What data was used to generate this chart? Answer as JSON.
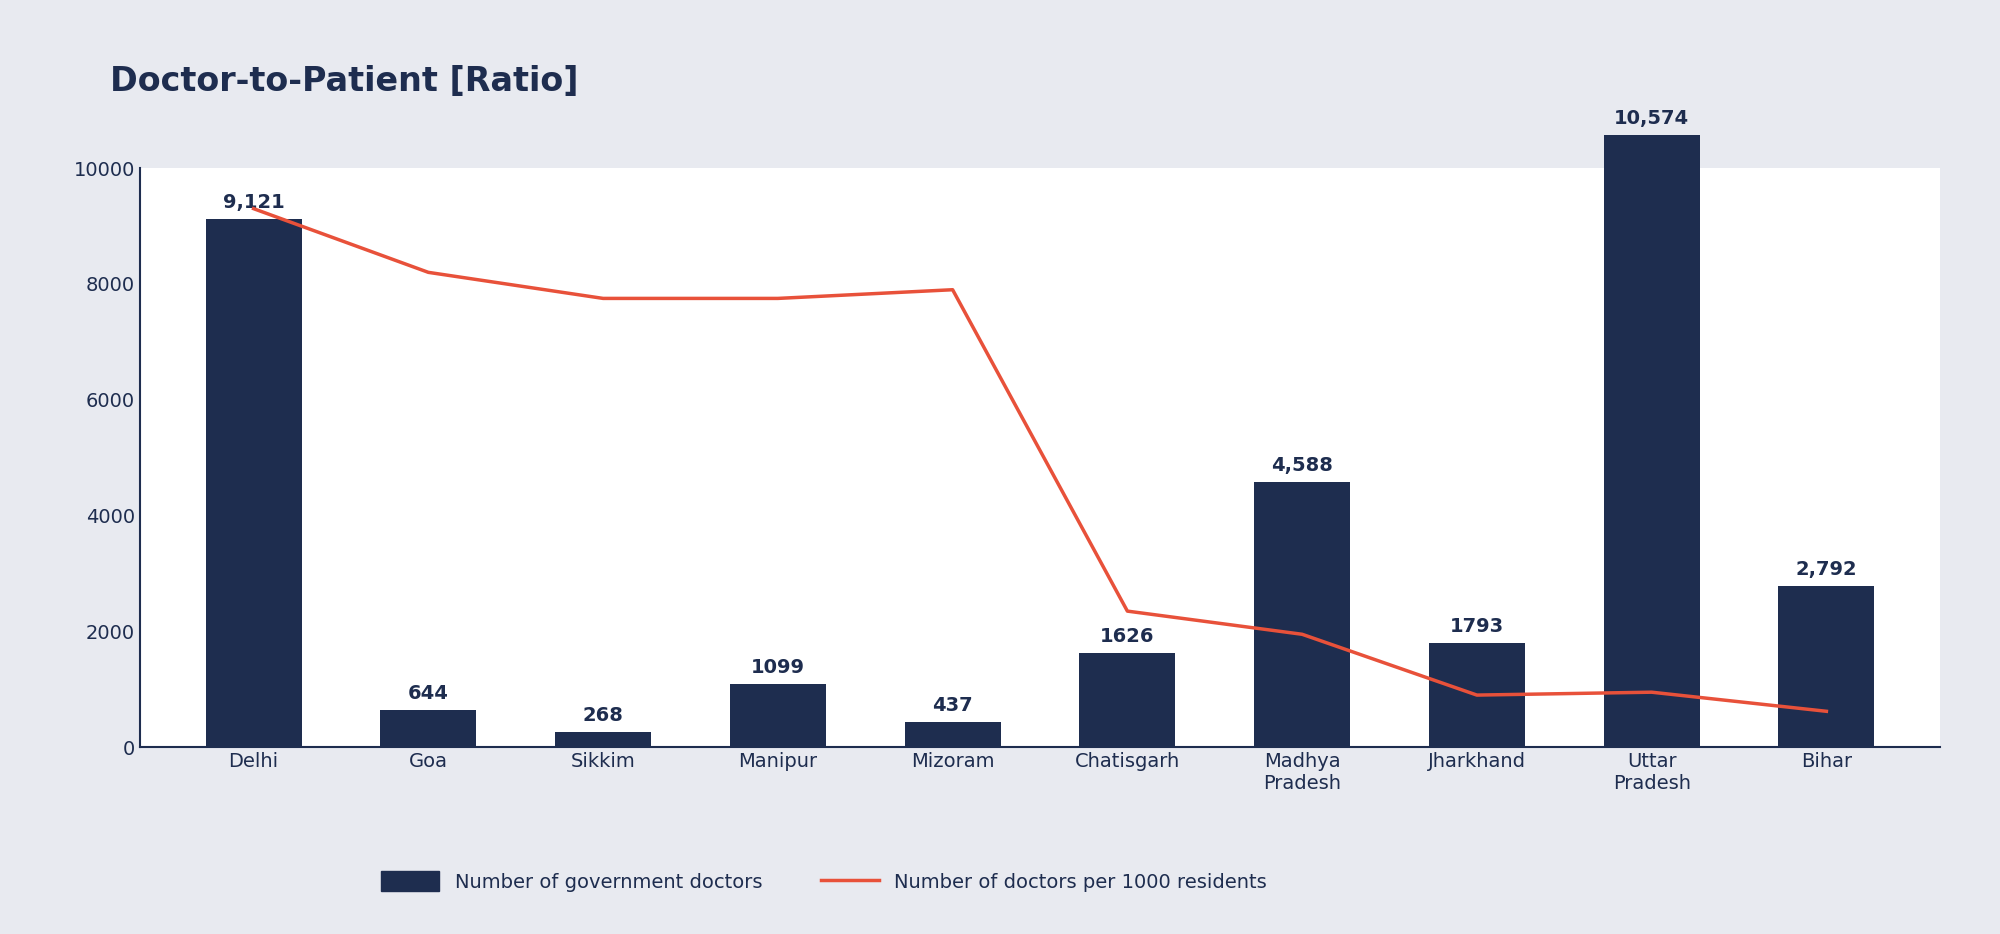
{
  "title": "Doctor-to-Patient [Ratio]",
  "categories": [
    "Delhi",
    "Goa",
    "Sikkim",
    "Manipur",
    "Mizoram",
    "Chatisgarh",
    "Madhya\nPradesh",
    "Jharkhand",
    "Uttar\nPradesh",
    "Bihar"
  ],
  "bar_values": [
    9121,
    644,
    268,
    1099,
    437,
    1626,
    4588,
    1793,
    10574,
    2792
  ],
  "bar_labels": [
    "9,121",
    "644",
    "268",
    "1099",
    "437",
    "1626",
    "4,588",
    "1793",
    "10,574",
    "2,792"
  ],
  "line_values": [
    9300,
    8200,
    7750,
    7750,
    7900,
    2350,
    1950,
    900,
    950,
    620
  ],
  "bar_color": "#1e2d4f",
  "line_color": "#e8513a",
  "figure_bg": "#e8eaf0",
  "axes_bg": "#ffffff",
  "ylim": [
    0,
    10000
  ],
  "yticks": [
    0,
    2000,
    4000,
    6000,
    8000,
    10000
  ],
  "legend_bar_label": "Number of government doctors",
  "legend_line_label": "Number of doctors per 1000 residents",
  "title_fontsize": 24,
  "tick_fontsize": 14,
  "legend_fontsize": 14,
  "bar_label_fontsize": 14,
  "title_color": "#1e2d4f",
  "axis_color": "#1e2d4f",
  "text_color": "#1e2d4f",
  "spine_color": "#1e2d4f"
}
